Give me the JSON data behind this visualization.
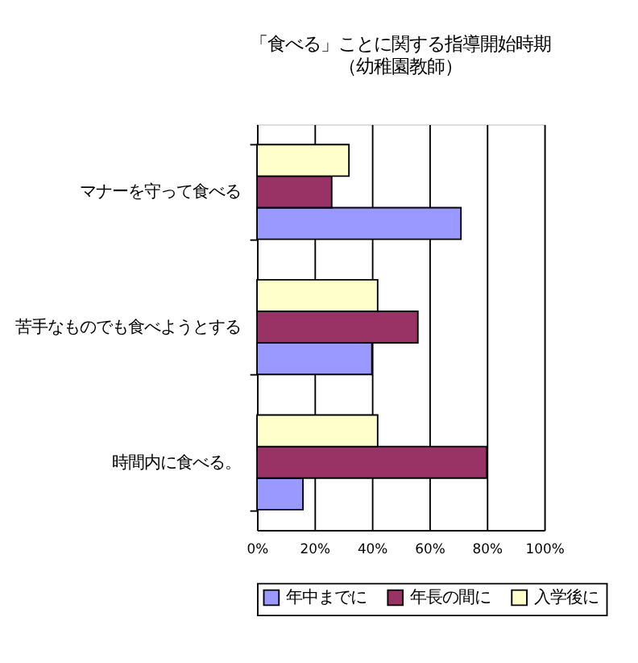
{
  "chart_data": {
    "type": "bar",
    "orientation": "horizontal",
    "title": "「食べる」ことに関する指導開始時期",
    "subtitle": "（幼稚園教師）",
    "categories": [
      "マナーを守って食べる",
      "苦手なものでも食べようとする",
      "時間内に食べる。"
    ],
    "series": [
      {
        "name": "年中までに",
        "color": "#9999ff",
        "values": [
          71,
          40,
          16
        ]
      },
      {
        "name": "年長の間に",
        "color": "#993366",
        "values": [
          26,
          56,
          80
        ]
      },
      {
        "name": "入学後に",
        "color": "#ffffcc",
        "values": [
          32,
          42,
          42
        ]
      }
    ],
    "xlim": [
      0,
      100
    ],
    "xticks": [
      {
        "value": 0,
        "label": "0%"
      },
      {
        "value": 20,
        "label": "20%"
      },
      {
        "value": 40,
        "label": "40%"
      },
      {
        "value": 60,
        "label": "60%"
      },
      {
        "value": 80,
        "label": "80%"
      },
      {
        "value": 100,
        "label": "100%"
      }
    ],
    "grid": "x",
    "legend": "bottom"
  }
}
